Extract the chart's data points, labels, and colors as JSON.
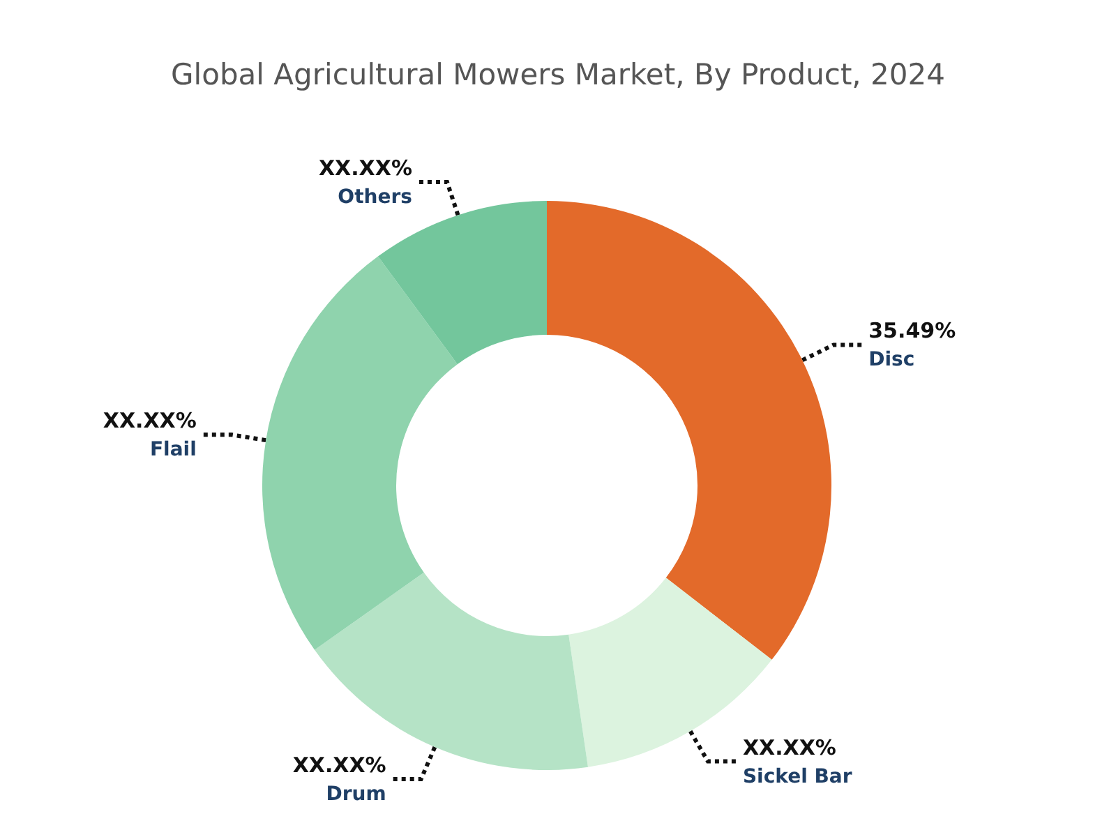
{
  "chart_data": {
    "type": "donut",
    "title": "Global Agricultural Mowers Market, By Product, 2024",
    "categories": [
      "Disc",
      "Sickel Bar",
      "Drum",
      "Flail",
      "Others"
    ],
    "values": [
      35.49,
      12.2,
      17.5,
      24.7,
      10.11
    ],
    "value_labels": [
      "35.49%",
      "XX.XX%",
      "XX.XX%",
      "XX.XX%",
      "XX.XX%"
    ],
    "colors": [
      "#e36a2a",
      "#dcf3df",
      "#b5e3c6",
      "#8fd3ad",
      "#73c69c"
    ],
    "legend": false
  }
}
